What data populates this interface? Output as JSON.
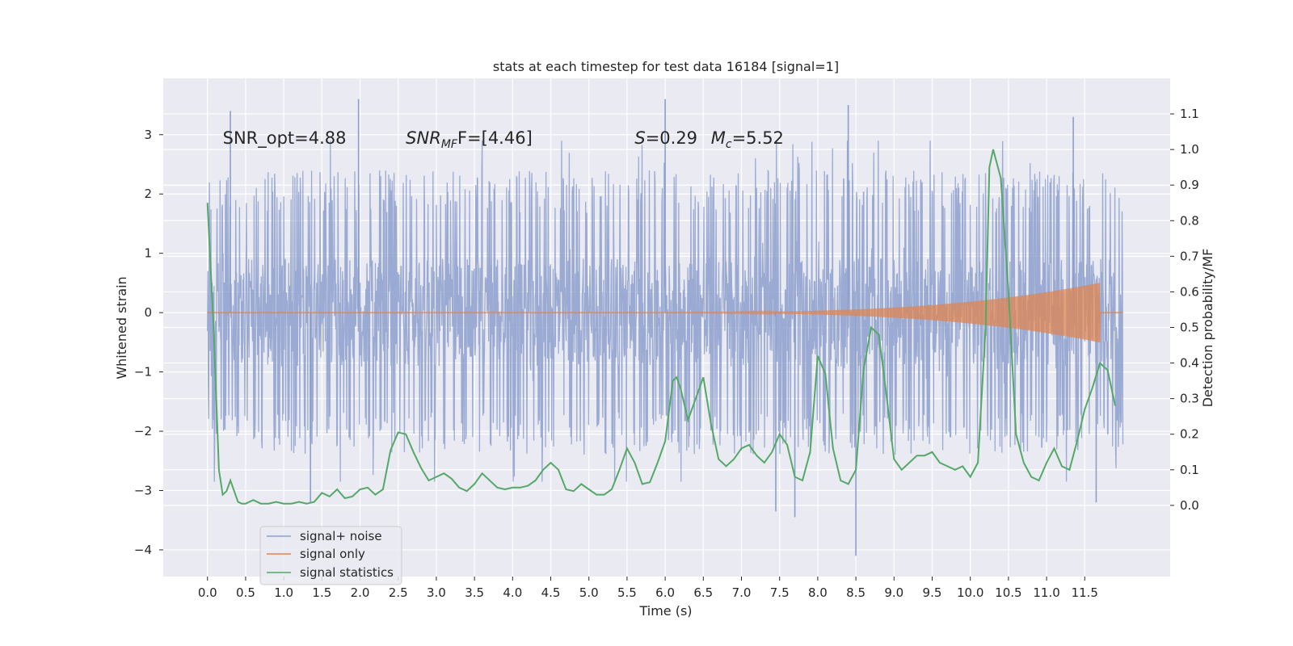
{
  "chart_data": {
    "type": "line",
    "title": "stats at each timestep for test data 16184 [signal=1]",
    "xlabel": "Time (s)",
    "ylabel": "Whitened strain",
    "y2label": "Detection probability/MF",
    "xlim": [
      -0.58,
      12.62
    ],
    "ylim": [
      -4.45,
      3.95
    ],
    "y2lim": [
      -0.2,
      1.2
    ],
    "x_ticks": [
      0.0,
      0.5,
      1.0,
      1.5,
      2.0,
      2.5,
      3.0,
      3.5,
      4.0,
      4.5,
      5.0,
      5.5,
      6.0,
      6.5,
      7.0,
      7.5,
      8.0,
      8.5,
      9.0,
      9.5,
      10.0,
      10.5,
      11.0,
      11.5
    ],
    "x_tick_labels": [
      "0.0",
      "0.5",
      "1.0",
      "1.5",
      "2.0",
      "2.5",
      "3.0",
      "3.5",
      "4.0",
      "4.5",
      "5.0",
      "5.5",
      "6.0",
      "6.5",
      "7.0",
      "7.5",
      "8.0",
      "8.5",
      "9.0",
      "9.5",
      "10.0",
      "10.5",
      "11.0",
      "11.5"
    ],
    "y_ticks": [
      3,
      2,
      1,
      0,
      -1,
      -2,
      -3,
      -4
    ],
    "y_tick_labels": [
      "3",
      "2",
      "1",
      "0",
      "−1",
      "−2",
      "−3",
      "−4"
    ],
    "y2_ticks": [
      1.1,
      1.0,
      0.9,
      0.8,
      0.7,
      0.6,
      0.5,
      0.4,
      0.3,
      0.2,
      0.1,
      0.0
    ],
    "y2_tick_labels": [
      "1.1",
      "1.0",
      "0.9",
      "0.8",
      "0.7",
      "0.6",
      "0.5",
      "0.4",
      "0.3",
      "0.2",
      "0.1",
      "0.0"
    ],
    "grid": true,
    "legend_placement": "lower-left",
    "series": [
      {
        "name": "signal+ noise",
        "color": "#8c9fcc",
        "axis": "left",
        "t_range": [
          0.0,
          12.0
        ],
        "envelope": [
          -2.2,
          2.2
        ],
        "spike_extremes": [
          [
            0.3,
            3.4
          ],
          [
            1.98,
            3.6
          ],
          [
            6.0,
            3.6
          ],
          [
            8.4,
            3.5
          ],
          [
            11.35,
            3.3
          ],
          [
            8.5,
            -4.1
          ],
          [
            7.7,
            -3.45
          ],
          [
            1.35,
            -3.2
          ],
          [
            11.65,
            -3.2
          ],
          [
            7.45,
            -3.35
          ]
        ]
      },
      {
        "name": "signal only",
        "color": "#dd8452",
        "axis": "left",
        "t_range": [
          0.0,
          12.0
        ],
        "chirp_start": 5.5,
        "chirp_peak_time": 11.7,
        "chirp_peak_amplitude": 0.5
      },
      {
        "name": "signal statistics",
        "color": "#55a868",
        "axis": "right",
        "x": [
          0.0,
          0.08,
          0.15,
          0.2,
          0.25,
          0.3,
          0.35,
          0.4,
          0.45,
          0.5,
          0.6,
          0.7,
          0.8,
          0.9,
          1.0,
          1.1,
          1.2,
          1.3,
          1.4,
          1.5,
          1.6,
          1.7,
          1.8,
          1.9,
          2.0,
          2.1,
          2.2,
          2.3,
          2.4,
          2.5,
          2.6,
          2.7,
          2.8,
          2.9,
          3.0,
          3.1,
          3.2,
          3.3,
          3.4,
          3.5,
          3.6,
          3.7,
          3.8,
          3.9,
          4.0,
          4.1,
          4.2,
          4.3,
          4.4,
          4.5,
          4.6,
          4.7,
          4.8,
          4.9,
          5.0,
          5.1,
          5.2,
          5.3,
          5.4,
          5.5,
          5.6,
          5.7,
          5.8,
          5.9,
          6.0,
          6.1,
          6.15,
          6.2,
          6.3,
          6.4,
          6.5,
          6.6,
          6.7,
          6.8,
          6.9,
          7.0,
          7.1,
          7.2,
          7.3,
          7.4,
          7.5,
          7.6,
          7.7,
          7.8,
          7.9,
          8.0,
          8.1,
          8.2,
          8.3,
          8.4,
          8.5,
          8.6,
          8.7,
          8.8,
          8.9,
          9.0,
          9.1,
          9.2,
          9.3,
          9.4,
          9.5,
          9.6,
          9.7,
          9.8,
          9.9,
          10.0,
          10.1,
          10.2,
          10.25,
          10.3,
          10.4,
          10.5,
          10.6,
          10.7,
          10.8,
          10.9,
          11.0,
          11.1,
          11.2,
          11.3,
          11.4,
          11.5,
          11.6,
          11.7,
          11.8,
          11.9
        ],
        "values": [
          0.85,
          0.5,
          0.1,
          0.03,
          0.04,
          0.07,
          0.04,
          0.01,
          0.005,
          0.005,
          0.015,
          0.005,
          0.005,
          0.01,
          0.005,
          0.005,
          0.01,
          0.005,
          0.01,
          0.035,
          0.025,
          0.045,
          0.02,
          0.025,
          0.045,
          0.05,
          0.03,
          0.045,
          0.155,
          0.205,
          0.2,
          0.15,
          0.105,
          0.07,
          0.08,
          0.09,
          0.075,
          0.05,
          0.04,
          0.06,
          0.09,
          0.07,
          0.05,
          0.045,
          0.05,
          0.05,
          0.055,
          0.07,
          0.1,
          0.12,
          0.1,
          0.045,
          0.04,
          0.06,
          0.045,
          0.03,
          0.03,
          0.045,
          0.1,
          0.16,
          0.12,
          0.06,
          0.065,
          0.12,
          0.18,
          0.35,
          0.36,
          0.33,
          0.24,
          0.3,
          0.36,
          0.23,
          0.13,
          0.11,
          0.13,
          0.16,
          0.17,
          0.14,
          0.12,
          0.15,
          0.2,
          0.17,
          0.08,
          0.07,
          0.15,
          0.42,
          0.37,
          0.16,
          0.07,
          0.06,
          0.1,
          0.38,
          0.5,
          0.48,
          0.31,
          0.13,
          0.1,
          0.12,
          0.14,
          0.14,
          0.15,
          0.12,
          0.11,
          0.1,
          0.11,
          0.08,
          0.12,
          0.5,
          0.95,
          1.0,
          0.92,
          0.6,
          0.2,
          0.12,
          0.08,
          0.07,
          0.12,
          0.16,
          0.11,
          0.1,
          0.18,
          0.27,
          0.33,
          0.4,
          0.38,
          0.28
        ]
      }
    ],
    "annotations": [
      {
        "text": "SNR_opt=4.88",
        "x": 0.2,
        "y": 2.85
      },
      {
        "text": "SNR",
        "sub": "MF",
        "suffix": "F=[4.46]",
        "x": 2.6,
        "y": 2.85
      },
      {
        "text": "S",
        "suffix": "=0.29",
        "x": 5.6,
        "y": 2.85
      },
      {
        "text": "M",
        "sub": "c",
        "suffix": "=5.52",
        "x": 6.6,
        "y": 2.85
      }
    ]
  },
  "legend": {
    "items": [
      "signal+ noise",
      "signal only",
      "signal statistics"
    ]
  },
  "colors": {
    "plot_background": "#eaeaf2",
    "grid": "#ffffff",
    "noise": "#8c9fcc",
    "signal": "#dd8452",
    "stats": "#55a868"
  }
}
